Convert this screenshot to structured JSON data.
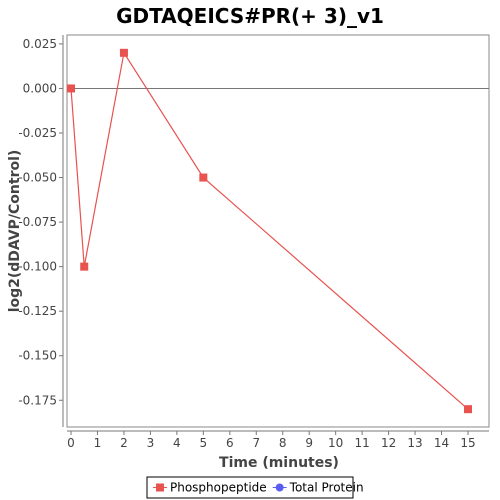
{
  "chart_data": {
    "type": "line",
    "title": "GDTAQEICS#PR(+ 3)_v1",
    "xlabel": "Time (minutes)",
    "ylabel": "log2(dDAVP/Control)",
    "xlim": [
      0,
      16
    ],
    "ylim": [
      -0.19,
      0.03
    ],
    "x_ticks": [
      0,
      1,
      2,
      3,
      4,
      5,
      6,
      7,
      8,
      9,
      10,
      11,
      12,
      13,
      14,
      15
    ],
    "y_ticks": [
      0.025,
      0.0,
      -0.025,
      -0.05,
      -0.075,
      -0.1,
      -0.125,
      -0.15,
      -0.175
    ],
    "y_tick_labels": [
      "0.025",
      "0.000",
      "-0.025",
      "-0.050",
      "-0.075",
      "-0.100",
      "-0.125",
      "-0.150",
      "-0.175"
    ],
    "zero_line": true,
    "grid": false,
    "legend_position": "bottom",
    "series": [
      {
        "name": "Phosphopeptide",
        "color": "#e8524f",
        "marker": "square",
        "x": [
          0,
          0.5,
          2,
          5,
          15
        ],
        "y": [
          0.0,
          -0.1,
          0.02,
          -0.05,
          -0.18
        ]
      },
      {
        "name": "Total Protein",
        "color": "#5a5ef0",
        "marker": "circle",
        "x": [],
        "y": []
      }
    ]
  }
}
